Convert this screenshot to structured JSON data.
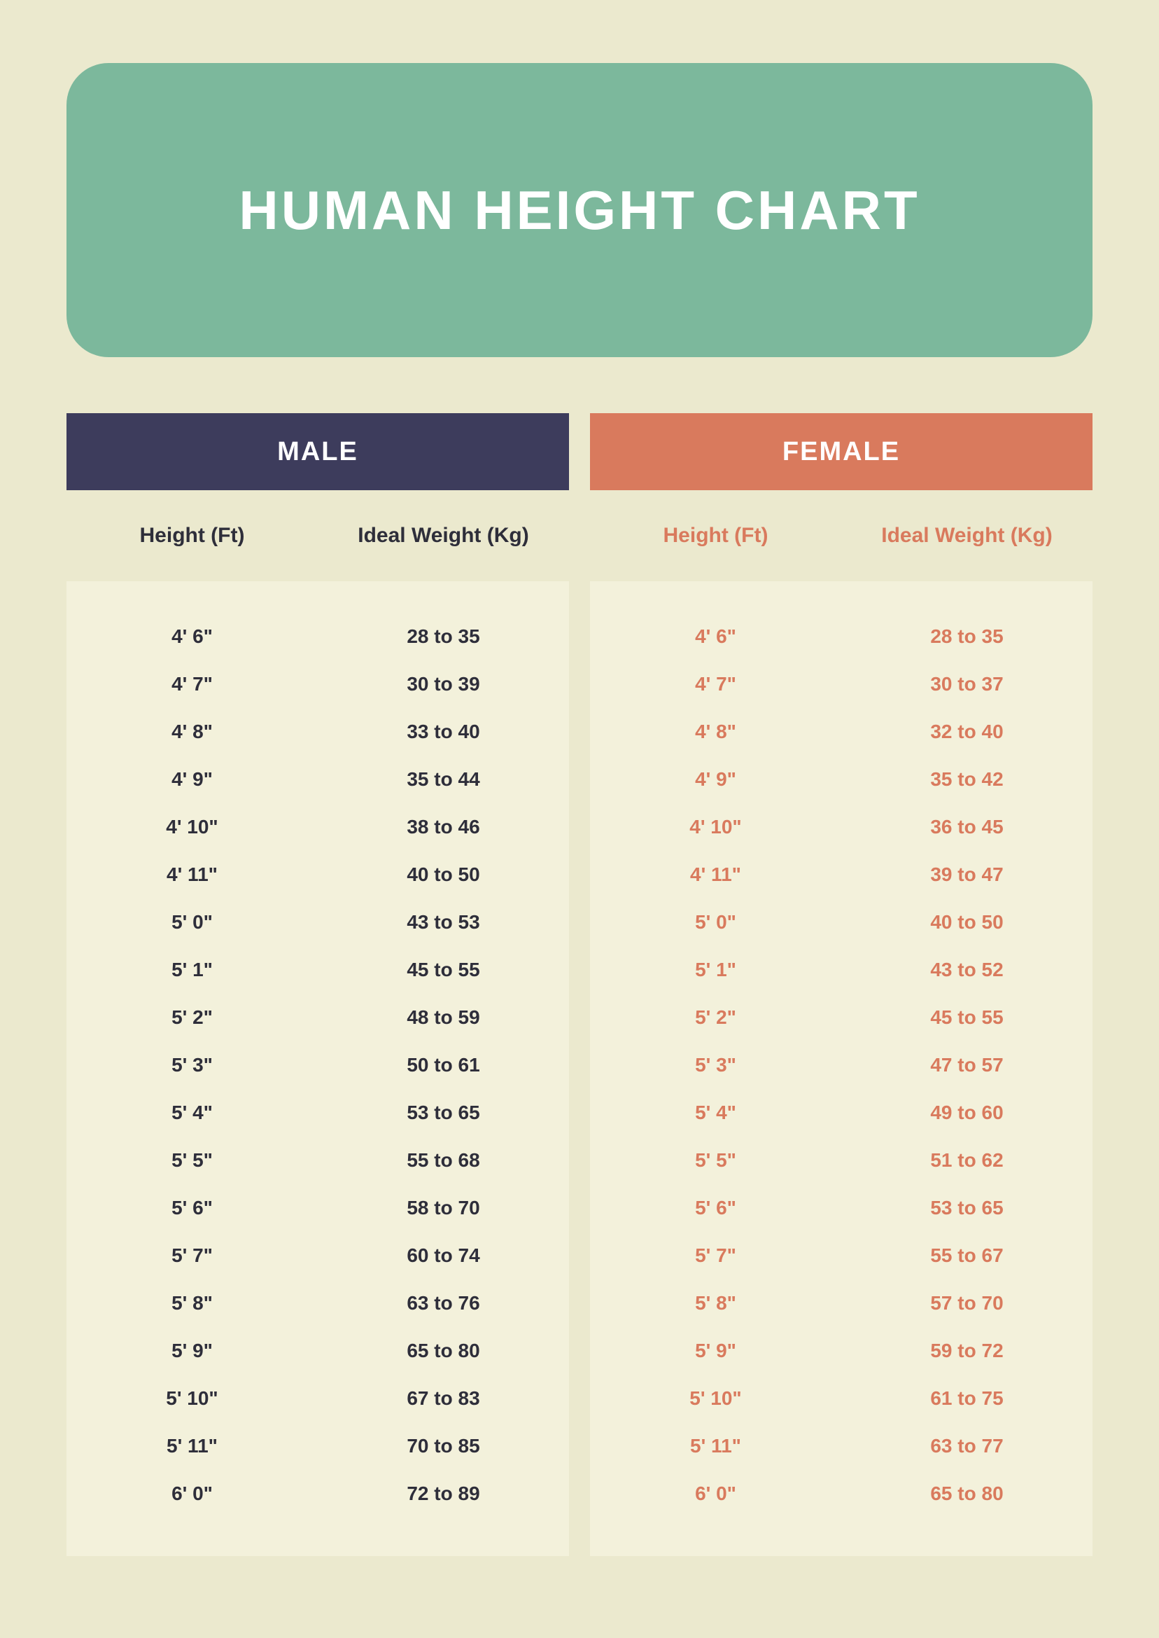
{
  "title": "HUMAN HEIGHT CHART",
  "colors": {
    "page_bg": "#ebe9ce",
    "banner_bg": "#7cb89c",
    "banner_text": "#ffffff",
    "male_header_bg": "#3d3c5c",
    "female_header_bg": "#d97a5d",
    "male_text": "#2e2e3a",
    "female_text": "#d97a5d",
    "data_body_bg": "#f3f1db"
  },
  "typography": {
    "title_fontsize": 78,
    "section_header_fontsize": 38,
    "subheader_fontsize": 30,
    "data_fontsize": 28
  },
  "male": {
    "label": "MALE",
    "col1_header": "Height (Ft)",
    "col2_header": "Ideal Weight (Kg)",
    "rows": [
      {
        "height": "4' 6\"",
        "weight": "28 to 35"
      },
      {
        "height": "4' 7\"",
        "weight": "30 to 39"
      },
      {
        "height": "4' 8\"",
        "weight": "33 to 40"
      },
      {
        "height": "4' 9\"",
        "weight": "35 to 44"
      },
      {
        "height": "4' 10\"",
        "weight": "38 to 46"
      },
      {
        "height": "4' 11\"",
        "weight": "40 to 50"
      },
      {
        "height": "5' 0\"",
        "weight": "43 to 53"
      },
      {
        "height": "5' 1\"",
        "weight": "45 to 55"
      },
      {
        "height": "5' 2\"",
        "weight": "48 to 59"
      },
      {
        "height": "5' 3\"",
        "weight": "50 to 61"
      },
      {
        "height": "5' 4\"",
        "weight": "53 to 65"
      },
      {
        "height": "5' 5\"",
        "weight": "55 to 68"
      },
      {
        "height": "5' 6\"",
        "weight": "58 to 70"
      },
      {
        "height": "5' 7\"",
        "weight": "60 to 74"
      },
      {
        "height": "5' 8\"",
        "weight": "63 to 76"
      },
      {
        "height": "5' 9\"",
        "weight": "65 to 80"
      },
      {
        "height": "5' 10\"",
        "weight": "67 to 83"
      },
      {
        "height": "5' 11\"",
        "weight": "70 to 85"
      },
      {
        "height": "6' 0\"",
        "weight": "72 to 89"
      }
    ]
  },
  "female": {
    "label": "FEMALE",
    "col1_header": "Height (Ft)",
    "col2_header": "Ideal Weight (Kg)",
    "rows": [
      {
        "height": "4' 6\"",
        "weight": "28 to 35"
      },
      {
        "height": "4' 7\"",
        "weight": "30 to 37"
      },
      {
        "height": "4' 8\"",
        "weight": "32 to 40"
      },
      {
        "height": "4' 9\"",
        "weight": "35 to 42"
      },
      {
        "height": "4' 10\"",
        "weight": "36 to 45"
      },
      {
        "height": "4' 11\"",
        "weight": "39 to 47"
      },
      {
        "height": "5' 0\"",
        "weight": "40 to 50"
      },
      {
        "height": "5' 1\"",
        "weight": "43 to 52"
      },
      {
        "height": "5' 2\"",
        "weight": "45 to 55"
      },
      {
        "height": "5' 3\"",
        "weight": "47 to 57"
      },
      {
        "height": "5' 4\"",
        "weight": "49 to 60"
      },
      {
        "height": "5' 5\"",
        "weight": "51 to 62"
      },
      {
        "height": "5' 6\"",
        "weight": "53 to 65"
      },
      {
        "height": "5' 7\"",
        "weight": "55 to 67"
      },
      {
        "height": "5' 8\"",
        "weight": "57 to 70"
      },
      {
        "height": "5' 9\"",
        "weight": "59 to 72"
      },
      {
        "height": "5' 10\"",
        "weight": "61 to 75"
      },
      {
        "height": "5' 11\"",
        "weight": "63 to 77"
      },
      {
        "height": "6' 0\"",
        "weight": "65 to 80"
      }
    ]
  }
}
